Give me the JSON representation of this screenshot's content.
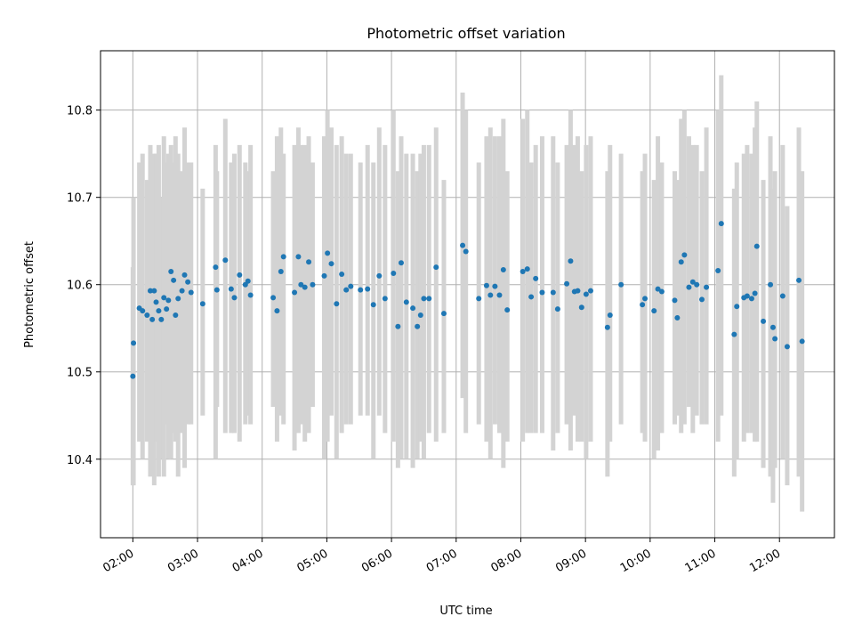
{
  "chart_data": {
    "type": "scatter",
    "title": "Photometric offset variation",
    "xlabel": "UTC time",
    "ylabel": "Photometric offset",
    "x_unit": "hours (UTC)",
    "xlim": [
      1.5,
      12.85
    ],
    "ylim": [
      10.31,
      10.868
    ],
    "grid": true,
    "x_ticks": [
      {
        "value": 2,
        "label": "02:00"
      },
      {
        "value": 3,
        "label": "03:00"
      },
      {
        "value": 4,
        "label": "04:00"
      },
      {
        "value": 5,
        "label": "05:00"
      },
      {
        "value": 6,
        "label": "06:00"
      },
      {
        "value": 7,
        "label": "07:00"
      },
      {
        "value": 8,
        "label": "08:00"
      },
      {
        "value": 9,
        "label": "09:00"
      },
      {
        "value": 10,
        "label": "10:00"
      },
      {
        "value": 11,
        "label": "11:00"
      },
      {
        "value": 12,
        "label": "12:00"
      }
    ],
    "y_ticks": [
      {
        "value": 10.4,
        "label": "10.4"
      },
      {
        "value": 10.5,
        "label": "10.5"
      },
      {
        "value": 10.6,
        "label": "10.6"
      },
      {
        "value": 10.7,
        "label": "10.7"
      },
      {
        "value": 10.8,
        "label": "10.8"
      }
    ],
    "colors": {
      "point": "#1f77b4",
      "errorbar": "#d3d3d3",
      "grid": "#b0b0b0"
    },
    "series": [
      {
        "x": [
          2.0,
          2.01,
          2.1,
          2.15,
          2.22,
          2.27,
          2.3,
          2.33,
          2.36,
          2.4,
          2.44,
          2.48,
          2.52,
          2.55,
          2.59,
          2.63,
          2.66,
          2.7,
          2.76,
          2.8,
          2.85,
          2.9,
          3.08,
          3.28,
          3.3,
          3.43,
          3.52,
          3.57,
          3.65,
          3.74,
          3.78,
          3.82,
          4.17,
          4.23,
          4.29,
          4.33,
          4.5,
          4.56,
          4.6,
          4.66,
          4.72,
          4.78,
          4.96,
          5.01,
          5.07,
          5.15,
          5.23,
          5.3,
          5.37,
          5.52,
          5.63,
          5.72,
          5.81,
          5.9,
          6.03,
          6.1,
          6.15,
          6.23,
          6.33,
          6.4,
          6.45,
          6.5,
          6.58,
          6.69,
          6.81,
          7.1,
          7.15,
          7.35,
          7.47,
          7.53,
          7.6,
          7.67,
          7.73,
          7.79,
          8.03,
          8.1,
          8.16,
          8.23,
          8.33,
          8.5,
          8.57,
          8.71,
          8.77,
          8.83,
          8.88,
          8.94,
          9.01,
          9.08,
          9.34,
          9.38,
          9.55,
          9.88,
          9.92,
          10.06,
          10.12,
          10.18,
          10.38,
          10.42,
          10.48,
          10.53,
          10.6,
          10.66,
          10.72,
          10.8,
          10.87,
          11.05,
          11.1,
          11.3,
          11.34,
          11.45,
          11.5,
          11.57,
          11.62,
          11.65,
          11.75,
          11.86,
          11.9,
          11.93,
          12.05,
          12.12,
          12.3,
          12.35
        ],
        "y": [
          10.495,
          10.533,
          10.573,
          10.57,
          10.565,
          10.593,
          10.56,
          10.593,
          10.58,
          10.57,
          10.56,
          10.585,
          10.572,
          10.582,
          10.615,
          10.605,
          10.565,
          10.584,
          10.593,
          10.611,
          10.603,
          10.591,
          10.578,
          10.62,
          10.594,
          10.628,
          10.595,
          10.585,
          10.611,
          10.6,
          10.604,
          10.588,
          10.585,
          10.57,
          10.615,
          10.632,
          10.591,
          10.632,
          10.6,
          10.597,
          10.626,
          10.6,
          10.61,
          10.636,
          10.624,
          10.578,
          10.612,
          10.594,
          10.598,
          10.594,
          10.595,
          10.577,
          10.61,
          10.584,
          10.613,
          10.552,
          10.625,
          10.58,
          10.573,
          10.552,
          10.565,
          10.584,
          10.584,
          10.62,
          10.567,
          10.645,
          10.638,
          10.584,
          10.599,
          10.588,
          10.598,
          10.588,
          10.617,
          10.571,
          10.615,
          10.618,
          10.586,
          10.607,
          10.591,
          10.591,
          10.572,
          10.601,
          10.627,
          10.592,
          10.593,
          10.574,
          10.589,
          10.593,
          10.551,
          10.565,
          10.6,
          10.577,
          10.584,
          10.57,
          10.595,
          10.592,
          10.582,
          10.562,
          10.626,
          10.634,
          10.597,
          10.603,
          10.6,
          10.583,
          10.597,
          10.616,
          10.67,
          10.543,
          10.575,
          10.585,
          10.587,
          10.584,
          10.59,
          10.644,
          10.558,
          10.6,
          10.551,
          10.538,
          10.587,
          10.529,
          10.605,
          10.535
        ],
        "err_low": [
          10.37,
          10.37,
          10.42,
          10.4,
          10.42,
          10.38,
          10.4,
          10.37,
          10.42,
          10.38,
          10.4,
          10.38,
          10.44,
          10.4,
          10.4,
          10.43,
          10.42,
          10.38,
          10.43,
          10.39,
          10.44,
          10.44,
          10.45,
          10.4,
          10.46,
          10.43,
          10.43,
          10.43,
          10.42,
          10.44,
          10.45,
          10.44,
          10.46,
          10.42,
          10.45,
          10.44,
          10.41,
          10.43,
          10.44,
          10.42,
          10.43,
          10.46,
          10.4,
          10.42,
          10.45,
          10.4,
          10.43,
          10.44,
          10.44,
          10.45,
          10.45,
          10.4,
          10.45,
          10.43,
          10.42,
          10.39,
          10.4,
          10.4,
          10.39,
          10.4,
          10.42,
          10.4,
          10.43,
          10.42,
          10.43,
          10.47,
          10.43,
          10.44,
          10.42,
          10.4,
          10.44,
          10.43,
          10.39,
          10.42,
          10.42,
          10.43,
          10.43,
          10.43,
          10.43,
          10.41,
          10.43,
          10.44,
          10.41,
          10.45,
          10.42,
          10.42,
          10.4,
          10.42,
          10.38,
          10.42,
          10.44,
          10.43,
          10.42,
          10.4,
          10.41,
          10.43,
          10.44,
          10.45,
          10.43,
          10.44,
          10.46,
          10.43,
          10.45,
          10.44,
          10.44,
          10.42,
          10.45,
          10.38,
          10.4,
          10.42,
          10.43,
          10.43,
          10.42,
          10.42,
          10.39,
          10.38,
          10.35,
          10.39,
          10.4,
          10.37,
          10.38,
          10.34
        ],
        "err_high": [
          10.62,
          10.7,
          10.74,
          10.75,
          10.72,
          10.76,
          10.73,
          10.75,
          10.75,
          10.76,
          10.7,
          10.77,
          10.74,
          10.75,
          10.76,
          10.74,
          10.77,
          10.75,
          10.73,
          10.78,
          10.74,
          10.74,
          10.71,
          10.76,
          10.73,
          10.79,
          10.74,
          10.75,
          10.76,
          10.74,
          10.73,
          10.76,
          10.73,
          10.77,
          10.78,
          10.75,
          10.76,
          10.78,
          10.76,
          10.76,
          10.77,
          10.74,
          10.77,
          10.8,
          10.78,
          10.76,
          10.77,
          10.75,
          10.75,
          10.74,
          10.76,
          10.74,
          10.78,
          10.76,
          10.8,
          10.73,
          10.77,
          10.75,
          10.75,
          10.73,
          10.75,
          10.76,
          10.76,
          10.78,
          10.72,
          10.82,
          10.8,
          10.74,
          10.77,
          10.78,
          10.77,
          10.77,
          10.79,
          10.73,
          10.79,
          10.8,
          10.74,
          10.76,
          10.77,
          10.77,
          10.74,
          10.76,
          10.8,
          10.76,
          10.77,
          10.73,
          10.76,
          10.77,
          10.73,
          10.76,
          10.75,
          10.73,
          10.75,
          10.72,
          10.77,
          10.74,
          10.73,
          10.72,
          10.79,
          10.8,
          10.77,
          10.76,
          10.76,
          10.73,
          10.78,
          10.8,
          10.84,
          10.71,
          10.74,
          10.75,
          10.76,
          10.75,
          10.78,
          10.81,
          10.72,
          10.77,
          10.71,
          10.73,
          10.76,
          10.69,
          10.78,
          10.73
        ]
      }
    ]
  }
}
